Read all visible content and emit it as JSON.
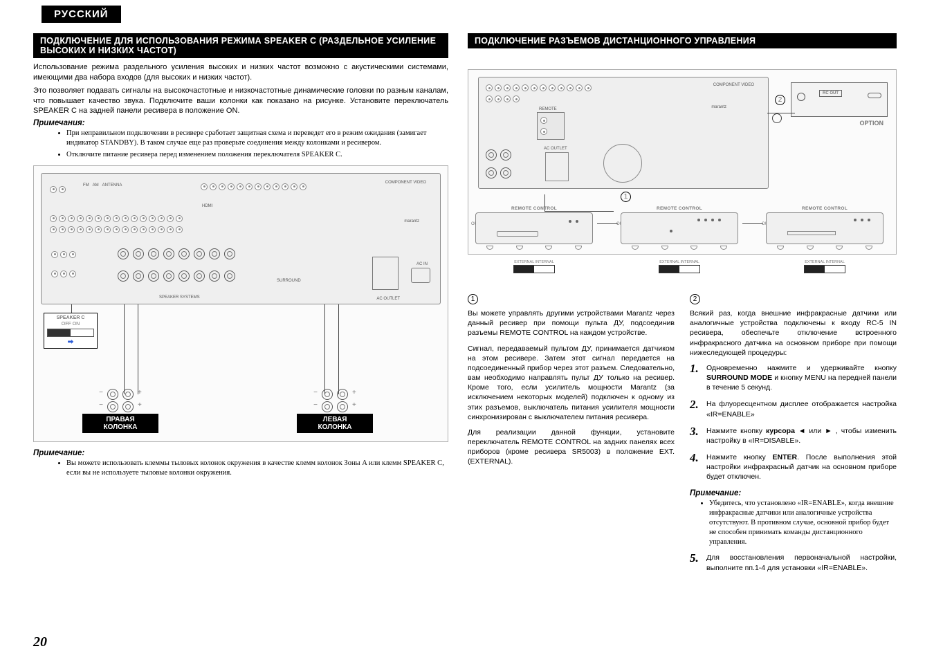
{
  "lang_tab": "РУССКИЙ",
  "page_number": "20",
  "colors": {
    "bar_bg": "#000000",
    "bar_text": "#ffffff",
    "text": "#000000"
  },
  "left": {
    "title": "ПОДКЛЮЧЕНИЕ ДЛЯ ИСПОЛЬЗОВАНИЯ РЕЖИМА SPEAKER C (РАЗДЕЛЬНОЕ УСИЛЕНИЕ ВЫСОКИХ И НИЗКИХ ЧАСТОТ)",
    "p1": "Использование режима раздельного усиления высоких и низких частот возможно с акустическими системами, имеющими два набора входов (для высоких и низких частот).",
    "p2": "Это позволяет подавать сигналы на высокочастотные и низкочастотные динамические головки по разным каналам, что повышает качество звука. Подключите ваши колонки как показано на рисунке. Установите переключатель SPEAKER C на задней панели ресивера в положение ON.",
    "notes_label": "Примечания:",
    "note1": "При неправильном подключении в ресивере сработает защитная схема и переведет его в режим ожидания (замигает индикатор STANDBY). В таком случае еще раз проверьте соединения между колонками и ресивером.",
    "note2": "Отключите питание ресивера перед изменением положения переключателя SPEAKER C.",
    "diagram": {
      "callout_speaker_c": "SPEAKER C",
      "callout_off_on": "OFF ON",
      "speaker_right": "ПРАВАЯ\nКОЛОНКА",
      "speaker_left": "ЛЕВАЯ\nКОЛОНКА",
      "hdmi": "HDMI",
      "brand": "marantz",
      "component": "COMPONENT VIDEO",
      "surround": "SURROUND",
      "speaker_systems": "SPEAKER SYSTEMS",
      "ac_outlet": "AC OUTLET",
      "ac_in": "AC IN"
    },
    "note_after_label": "Примечание:",
    "note_after": "Вы можете использовать клеммы тыловых колонок окружения в качестве клемм колонок Зоны A или клемм SPEAKER C, если вы не используете тыловые колонки окружения."
  },
  "right": {
    "title": "ПОДКЛЮЧЕНИЕ РАЗЪЕМОВ ДИСТАНЦИОННОГО УПРАВЛЕНИЯ",
    "diagram": {
      "remote_control": "REMOTE CONTROL",
      "in": "IN",
      "out": "OUT",
      "ext_int": "EXTERNAL  INTERNAL",
      "rc_out": "RC OUT",
      "option": "OPTION",
      "num1": "1",
      "num2": "2"
    },
    "col1": {
      "num": "1",
      "p1": "Вы можете управлять другими устройствами Marantz через данный ресивер при помощи пульта ДУ, подсоединив разъемы REMOTE CONTROL на каждом устройстве.",
      "p2": "Сигнал, передаваемый пультом ДУ, принимается датчиком на этом ресивере. Затем этот сигнал передается на подсоединенный прибор через этот разъем. Следовательно, вам необходимо направлять пульт ДУ только на ресивер. Кроме того, если усилитель мощности Marantz (за исключением некоторых моделей) подключен к одному из этих разъемов, выключатель питания усилителя мощности синхронизирован с выключателем питания ресивера.",
      "p3": "Для реализации данной функции, установите переключатель REMOTE CONTROL на задних панелях всех приборов (кроме ресивера SR5003) в положение EXT. (EXTERNAL)."
    },
    "col2": {
      "num": "2",
      "p1": "Всякий раз, когда внешние инфракрасные датчики или аналогичные устройства подключены к входу RC-5 IN ресивера, обеспечьте отключение встроенного инфракрасного датчика на основном приборе при помощи нижеследующей процедуры:",
      "s1a": "Одновременно нажмите и удерживайте кнопку ",
      "s1b": "SURROUND MODE",
      "s1c": " и кнопку MENU на передней панели в течение 5 секунд.",
      "s2": "На флуоресцентном дисплее отображается настройка «IR=ENABLE»",
      "s3a": "Нажмите кнопку ",
      "s3b": "курсора",
      "s3c": " ◄ или ► , чтобы изменить настройку в «IR=DISABLE».",
      "s4a": "Нажмите кнопку ",
      "s4b": "ENTER",
      "s4c": ". После выполнения этой настройки инфракрасный датчик на основном приборе будет отключен.",
      "note_label": "Примечание:",
      "note": "Убедитесь, что установлено «IR=ENABLE», когда внешние инфракрасные датчики или аналогичные устройства отсутствуют. В противном случае, основной прибор будет не способен принимать команды дистанционного управления.",
      "s5": "Для восстановления первоначальной настройки, выполните пп.1-4 для установки «IR=ENABLE»."
    }
  }
}
